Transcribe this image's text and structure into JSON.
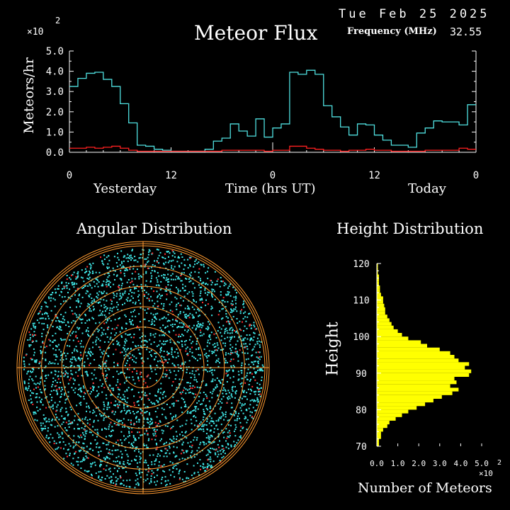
{
  "header": {
    "date": "Tue Feb 25 2025",
    "title": "Meteor Flux",
    "frequency_label": "Frequency (MHz)",
    "frequency_value": "32.55"
  },
  "flux": {
    "exponent_label": "×10",
    "exponent_power": "2",
    "day_labels": {
      "yesterday": "Yesterday",
      "time": "Time (hrs UT)",
      "today": "Today"
    }
  },
  "angular": {
    "title": "Angular Distribution"
  },
  "height": {
    "title": "Height Distribution",
    "exponent_label": "×10",
    "exponent_power": "2"
  },
  "colors": {
    "background": "#000000",
    "axis": "#ffffff",
    "flux_total": "#4fe0e0",
    "flux_low": "#ff2020",
    "scatter_main": "#40e8e8",
    "scatter_red": "#ff3030",
    "rings": "#ff9a30",
    "histogram": "#ffff00"
  },
  "chart_data": [
    {
      "type": "line",
      "title": "Meteor Flux",
      "ylabel": "Meteors/hr",
      "xlabel": "Time (hrs UT)",
      "ylim": [
        0,
        5
      ],
      "yticks": [
        "0.0",
        "1.0",
        "2.0",
        "3.0",
        "4.0",
        "5.0"
      ],
      "xticks": [
        "0",
        "12",
        "0",
        "12",
        "0"
      ],
      "x_hours": [
        0,
        1,
        2,
        3,
        4,
        5,
        6,
        7,
        8,
        9,
        10,
        11,
        12,
        13,
        14,
        15,
        16,
        17,
        18,
        19,
        20,
        21,
        22,
        23,
        24,
        25,
        26,
        27,
        28,
        29,
        30,
        31,
        32,
        33,
        34,
        35,
        36,
        37,
        38,
        39,
        40,
        41,
        42,
        43,
        44,
        45,
        46,
        47
      ],
      "series": [
        {
          "values": [
            3.25,
            3.65,
            3.9,
            3.95,
            3.6,
            3.25,
            2.4,
            1.45,
            0.35,
            0.3,
            0.15,
            0.1,
            0.05,
            0.05,
            0.05,
            0.05,
            0.15,
            0.55,
            0.7,
            1.4,
            1.05,
            0.8,
            1.65,
            0.75,
            1.2,
            1.4,
            3.95,
            3.85,
            4.05,
            3.85,
            2.3,
            1.75,
            1.25,
            0.85,
            1.4,
            1.35,
            0.85,
            0.6,
            0.35,
            0.35,
            0.25,
            0.95,
            1.2,
            1.55,
            1.5,
            1.5,
            1.35,
            2.35
          ]
        },
        {
          "values": [
            0.2,
            0.2,
            0.25,
            0.2,
            0.25,
            0.3,
            0.2,
            0.1,
            0.05,
            0.05,
            0.05,
            0.05,
            0.05,
            0.05,
            0.05,
            0.05,
            0.05,
            0.05,
            0.1,
            0.1,
            0.1,
            0.1,
            0.1,
            0.05,
            0.1,
            0.1,
            0.3,
            0.3,
            0.2,
            0.15,
            0.1,
            0.1,
            0.05,
            0.1,
            0.1,
            0.15,
            0.1,
            0.1,
            0.05,
            0.05,
            0.05,
            0.05,
            0.1,
            0.1,
            0.1,
            0.1,
            0.2,
            0.15
          ]
        }
      ]
    },
    {
      "type": "scatter",
      "title": "Angular Distribution",
      "rings": 6,
      "series": [
        {
          "points": "cyan"
        },
        {
          "points": "red"
        }
      ]
    },
    {
      "type": "bar",
      "title": "Height Distribution",
      "orientation": "horizontal",
      "ylabel": "Height",
      "xlabel": "Number of Meteors",
      "ylim": [
        70,
        120
      ],
      "xlim": [
        0,
        5
      ],
      "yticks": [
        "70",
        "80",
        "90",
        "100",
        "110",
        "120"
      ],
      "xticks": [
        "0.0",
        "1.0",
        "2.0",
        "3.0",
        "4.0",
        "5.0"
      ],
      "heights": [
        70,
        71,
        72,
        73,
        74,
        75,
        76,
        77,
        78,
        79,
        80,
        81,
        82,
        83,
        84,
        85,
        86,
        87,
        88,
        89,
        90,
        91,
        92,
        93,
        94,
        95,
        96,
        97,
        98,
        99,
        100,
        101,
        102,
        103,
        104,
        105,
        106,
        107,
        108,
        109,
        110,
        111,
        112,
        113,
        114,
        115,
        116,
        117,
        118,
        119
      ],
      "values": [
        0.1,
        0.1,
        0.2,
        0.2,
        0.3,
        0.5,
        0.6,
        0.9,
        1.2,
        1.5,
        1.9,
        2.3,
        2.7,
        3.1,
        3.6,
        3.9,
        3.5,
        3.8,
        3.7,
        4.4,
        4.5,
        4.2,
        4.4,
        3.9,
        3.7,
        3.5,
        3.0,
        2.4,
        2.1,
        1.5,
        1.2,
        1.0,
        0.8,
        0.7,
        0.6,
        0.5,
        0.4,
        0.4,
        0.35,
        0.3,
        0.3,
        0.2,
        0.15,
        0.15,
        0.1,
        0.1,
        0.1,
        0.05,
        0.05,
        0.05
      ]
    }
  ]
}
